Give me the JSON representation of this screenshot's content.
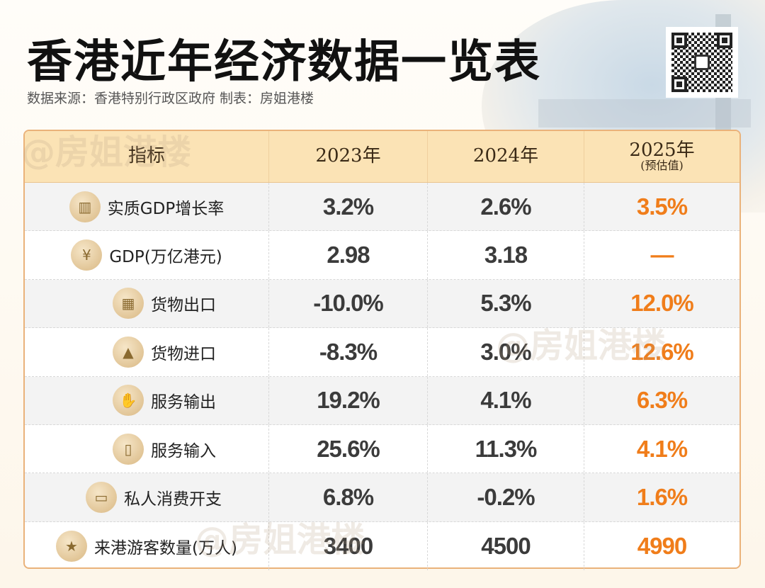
{
  "title": "香港近年经济数据一览表",
  "subtitle": "数据来源：香港特别行政区政府 制表：房姐港楼",
  "watermark": "@房姐港楼",
  "header": {
    "indicator": "指标",
    "y2023": "2023年",
    "y2024": "2024年",
    "y2025": "2025年",
    "y2025_note": "(预估值)"
  },
  "rows": [
    {
      "icon": "bar-chart-icon",
      "glyph": "▥",
      "label": "实质GDP增长率",
      "v2023": "3.2%",
      "v2024": "2.6%",
      "v2025": "3.5%"
    },
    {
      "icon": "money-bag-icon",
      "glyph": "¥",
      "label": "GDP(万亿港元)",
      "v2023": "2.98",
      "v2024": "3.18",
      "v2025": "—"
    },
    {
      "icon": "boxes-icon",
      "glyph": "▦",
      "label": "货物出口",
      "v2023": "-10.0%",
      "v2024": "5.3%",
      "v2025": "12.0%"
    },
    {
      "icon": "gold-bars-icon",
      "glyph": "▲",
      "label": "货物进口",
      "v2023": "-8.3%",
      "v2024": "3.0%",
      "v2025": "12.6%"
    },
    {
      "icon": "hand-money-icon",
      "glyph": "✋",
      "label": "服务输出",
      "v2023": "19.2%",
      "v2024": "4.1%",
      "v2025": "6.3%"
    },
    {
      "icon": "phone-download-icon",
      "glyph": "▯",
      "label": "服务输入",
      "v2023": "25.6%",
      "v2024": "11.3%",
      "v2025": "4.1%"
    },
    {
      "icon": "credit-card-icon",
      "glyph": "▭",
      "label": "私人消费开支",
      "v2023": "6.8%",
      "v2024": "-0.2%",
      "v2025": "1.6%"
    },
    {
      "icon": "award-medal-icon",
      "glyph": "★",
      "label": "来港游客数量(万人)",
      "v2023": "3400",
      "v2024": "4500",
      "v2025": "4990"
    }
  ],
  "colors": {
    "accent": "#f07d1a",
    "header_bg": "#fbe3b5",
    "border": "#eab27a"
  }
}
